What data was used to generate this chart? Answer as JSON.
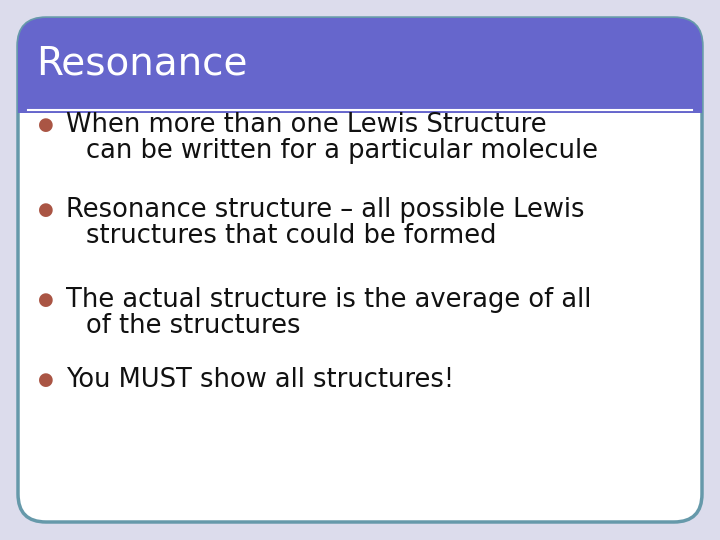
{
  "title": "Resonance",
  "title_bg_color": "#6666CC",
  "title_text_color": "#FFFFFF",
  "body_bg_color": "#FFFFFF",
  "outer_bg_color": "#DCDCEC",
  "border_color": "#6699AA",
  "bullet_color": "#AA5544",
  "text_color": "#111111",
  "bullet_points": [
    [
      "When more than one Lewis Structure",
      "can be written for a particular molecule"
    ],
    [
      "Resonance structure – all possible Lewis",
      "structures that could be formed"
    ],
    [
      "The actual structure is the average of all",
      "of the structures"
    ],
    [
      "You MUST show all structures!"
    ]
  ],
  "fig_width": 7.2,
  "fig_height": 5.4,
  "dpi": 100
}
